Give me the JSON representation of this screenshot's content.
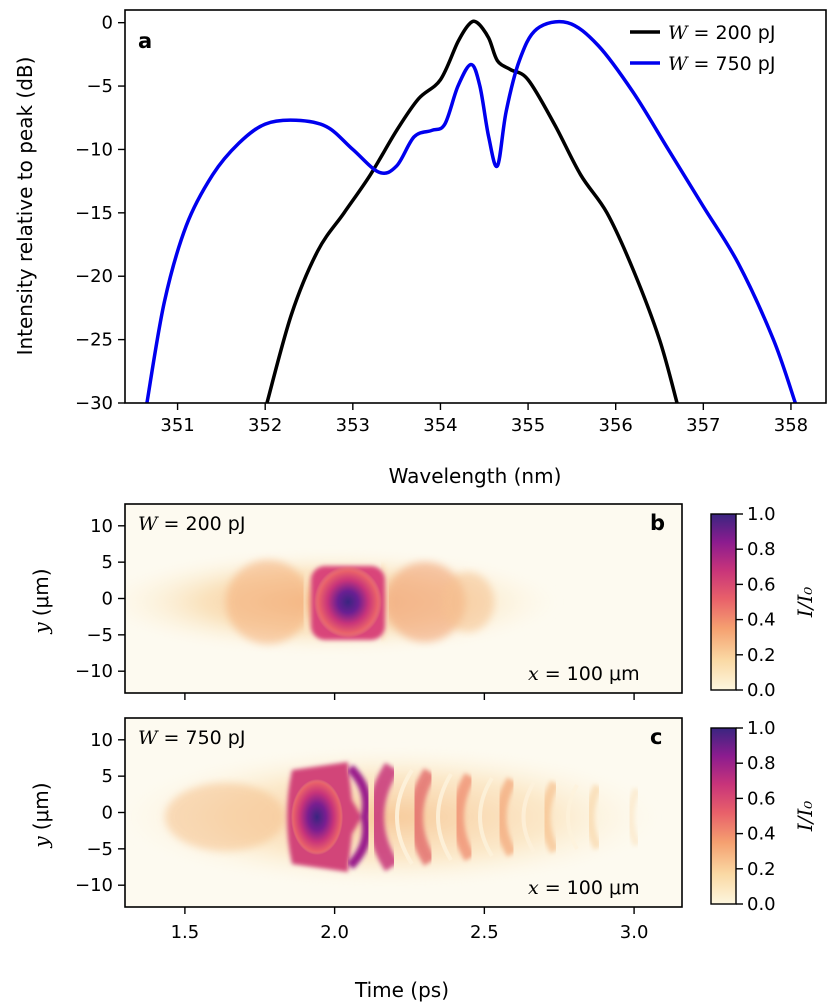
{
  "chart_data": [
    {
      "panel": "a",
      "type": "line",
      "xlabel": "Wavelength (nm)",
      "ylabel": "Intensity relative to peak (dB)",
      "xlim": [
        350.4,
        358.4
      ],
      "ylim": [
        -30,
        1
      ],
      "xticks": [
        351,
        352,
        353,
        354,
        355,
        356,
        357,
        358
      ],
      "yticks": [
        0,
        -5,
        -10,
        -15,
        -20,
        -25,
        -30
      ],
      "ytick_labels": [
        "0",
        "−5",
        "−10",
        "−15",
        "−20",
        "−25",
        "−30"
      ],
      "legend_position": "top-right",
      "series": [
        {
          "name": "W = 200 pJ",
          "legend_var": "W",
          "legend_value": "= 200 pJ",
          "color": "#000000",
          "x": [
            352.02,
            352.3,
            352.6,
            352.9,
            353.2,
            353.5,
            353.75,
            354.0,
            354.2,
            354.33,
            354.42,
            354.55,
            354.65,
            354.8,
            355.0,
            355.3,
            355.6,
            355.9,
            356.2,
            356.5,
            356.7
          ],
          "y": [
            -30,
            -23,
            -18,
            -15,
            -12,
            -8.5,
            -6,
            -4.5,
            -1.5,
            -0.1,
            0,
            -1.2,
            -3,
            -3.7,
            -4.5,
            -8,
            -12,
            -15,
            -19.5,
            -25,
            -30
          ]
        },
        {
          "name": "W = 750 pJ",
          "legend_var": "W",
          "legend_value": "= 750 pJ",
          "color": "#0000ee",
          "x": [
            350.65,
            350.85,
            351.1,
            351.4,
            351.7,
            352.0,
            352.35,
            352.7,
            353.0,
            353.3,
            353.5,
            353.7,
            353.9,
            354.05,
            354.2,
            354.35,
            354.45,
            354.55,
            354.65,
            354.75,
            354.9,
            355.1,
            355.45,
            355.8,
            356.2,
            356.6,
            357.0,
            357.4,
            357.8,
            358.05
          ],
          "y": [
            -30,
            -22,
            -16,
            -12,
            -9.5,
            -8,
            -7.7,
            -8.2,
            -10,
            -11.8,
            -11.3,
            -9,
            -8.5,
            -8,
            -5,
            -3.3,
            -5,
            -9,
            -11.3,
            -7,
            -3,
            -0.5,
            0,
            -1.8,
            -5.5,
            -10,
            -14.5,
            -19,
            -25,
            -30
          ]
        }
      ],
      "letter": "a"
    },
    {
      "panel": "b",
      "type": "heatmap",
      "ylabel_var": "y",
      "ylabel_unit": "(μm)",
      "ylim": [
        -13,
        13
      ],
      "yticks": [
        10,
        5,
        0,
        -5,
        -10
      ],
      "ytick_labels": [
        "10",
        "5",
        "0",
        "−5",
        "−10"
      ],
      "xlim": [
        1.3,
        3.16
      ],
      "colorbar_label": "I/I₀",
      "colorbar_ticks": [
        "1.0",
        "0.8",
        "0.6",
        "0.4",
        "0.2",
        "0.0"
      ],
      "annotation_var": "W",
      "annotation_value": "= 200 pJ",
      "position_var": "x",
      "position_value": "= 100 μm",
      "letter": "b",
      "peak": {
        "t": 2.08,
        "y": 0,
        "value": 1.0
      }
    },
    {
      "panel": "c",
      "type": "heatmap",
      "xlabel": "Time (ps)",
      "xticks": [
        1.5,
        2.0,
        2.5,
        3.0
      ],
      "xlim": [
        1.3,
        3.16
      ],
      "ylabel_var": "y",
      "ylabel_unit": "(μm)",
      "ylim": [
        -13,
        13
      ],
      "yticks": [
        10,
        5,
        0,
        -5,
        -10
      ],
      "ytick_labels": [
        "10",
        "5",
        "0",
        "−5",
        "−10"
      ],
      "colorbar_label": "I/I₀",
      "colorbar_ticks": [
        "1.0",
        "0.8",
        "0.6",
        "0.4",
        "0.2",
        "0.0"
      ],
      "annotation_var": "W",
      "annotation_value": "= 750 pJ",
      "position_var": "x",
      "position_value": "= 100 μm",
      "letter": "c",
      "peak": {
        "t": 1.97,
        "y": 0,
        "value": 1.0
      }
    }
  ],
  "colormap": [
    "#fdf6df",
    "#fad9a4",
    "#f5a070",
    "#e8606a",
    "#c8347a",
    "#8c1c8f",
    "#3a2580"
  ],
  "legend_colors": {
    "black": "#000000",
    "blue": "#0000ee"
  }
}
